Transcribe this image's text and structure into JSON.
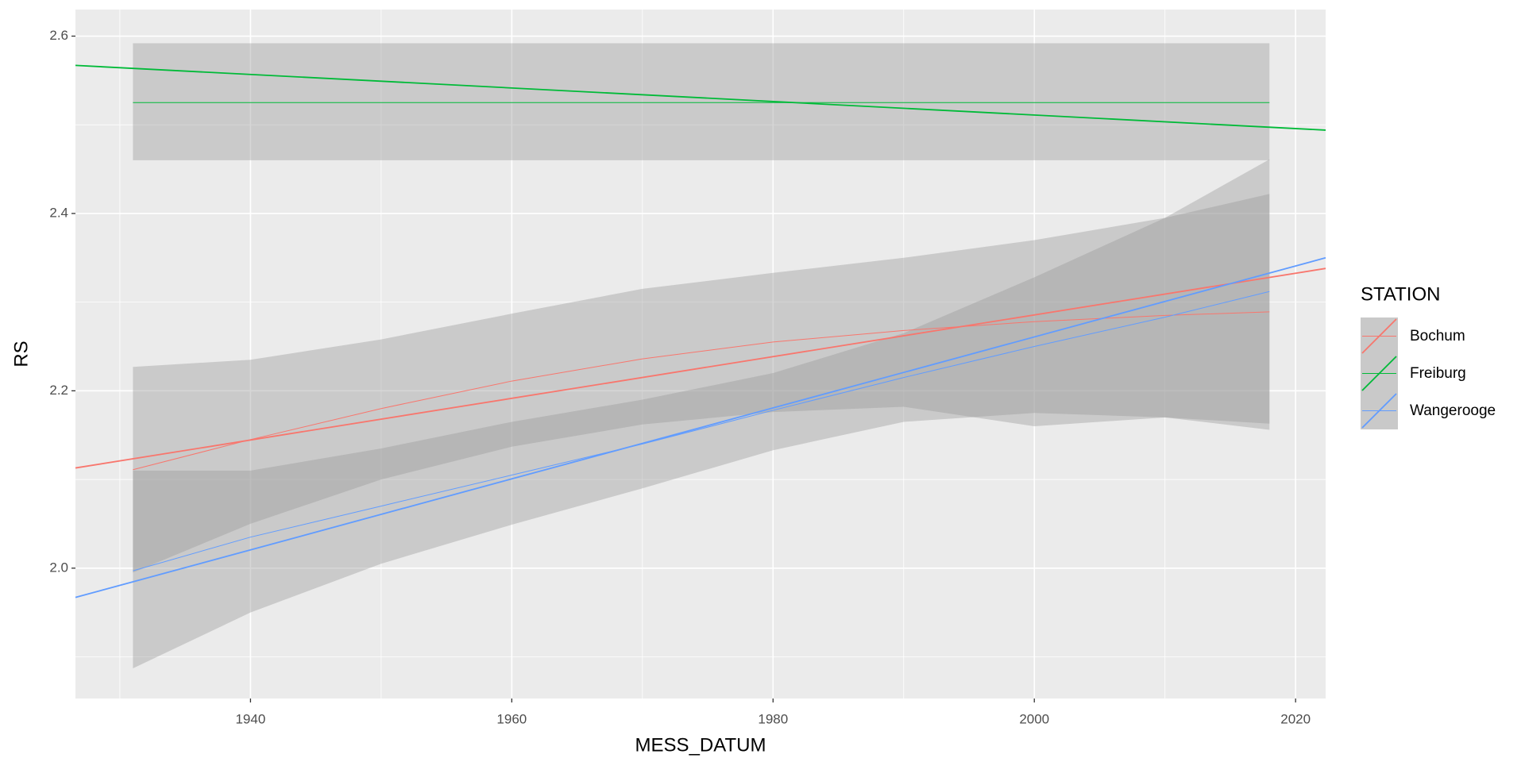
{
  "chart_data": {
    "type": "line",
    "xlabel": "MESS_DATUM",
    "ylabel": "RS",
    "legend_title": "STATION",
    "xlim": [
      1926.6,
      2022.3
    ],
    "ylim": [
      1.853,
      2.63
    ],
    "xticks": [
      1940,
      1960,
      1980,
      2000,
      2020
    ],
    "minor_xticks": [
      1930,
      1950,
      1970,
      1990,
      2010
    ],
    "yticks": [
      {
        "value": 2,
        "label": "2.0"
      },
      {
        "value": 2.2,
        "label": "2.2"
      },
      {
        "value": 2.4,
        "label": "2.4"
      },
      {
        "value": 2.6,
        "label": "2.6"
      }
    ],
    "minor_yticks": [
      1.9,
      2.1,
      2.3,
      2.5
    ],
    "grid": true,
    "series": [
      {
        "name": "Bochum",
        "color": "#F8766D",
        "x": [
          1931,
          1940,
          1950,
          1960,
          1970,
          1980,
          1990,
          2000,
          2010,
          2018
        ],
        "values": [
          2.111,
          2.145,
          2.18,
          2.211,
          2.236,
          2.255,
          2.268,
          2.278,
          2.285,
          2.289
        ],
        "lower": [
          1.995,
          2.05,
          2.1,
          2.137,
          2.162,
          2.176,
          2.182,
          2.16,
          2.17,
          2.156
        ],
        "upper": [
          2.227,
          2.235,
          2.258,
          2.287,
          2.315,
          2.333,
          2.35,
          2.37,
          2.395,
          2.422
        ],
        "trend_x": [
          1926.6,
          2022.3
        ],
        "trend_values": [
          2.113,
          2.338
        ]
      },
      {
        "name": "Freiburg",
        "color": "#00BA38",
        "x": [
          1931,
          1940,
          1950,
          1960,
          1970,
          1980,
          1990,
          2000,
          2010,
          2018
        ],
        "values": [
          2.525,
          2.525,
          2.525,
          2.525,
          2.525,
          2.525,
          2.525,
          2.525,
          2.525,
          2.525
        ],
        "lower": [
          2.46,
          2.46,
          2.46,
          2.46,
          2.46,
          2.46,
          2.46,
          2.46,
          2.46,
          2.46
        ],
        "upper": [
          2.592,
          2.592,
          2.592,
          2.592,
          2.592,
          2.592,
          2.592,
          2.592,
          2.592,
          2.592
        ],
        "trend_x": [
          1926.6,
          2022.3
        ],
        "trend_values": [
          2.567,
          2.494
        ]
      },
      {
        "name": "Wangerooge",
        "color": "#619CFF",
        "x": [
          1931,
          1940,
          1950,
          1960,
          1970,
          1980,
          1990,
          2000,
          2010,
          2018
        ],
        "values": [
          1.997,
          2.035,
          2.07,
          2.105,
          2.14,
          2.178,
          2.215,
          2.25,
          2.283,
          2.312
        ],
        "lower": [
          1.887,
          1.95,
          2.005,
          2.049,
          2.09,
          2.133,
          2.165,
          2.175,
          2.17,
          2.163
        ],
        "upper": [
          2.11,
          2.11,
          2.135,
          2.165,
          2.19,
          2.22,
          2.265,
          2.328,
          2.395,
          2.461
        ],
        "trend_x": [
          1926.6,
          2022.3
        ],
        "trend_values": [
          1.967,
          2.35
        ]
      }
    ]
  }
}
